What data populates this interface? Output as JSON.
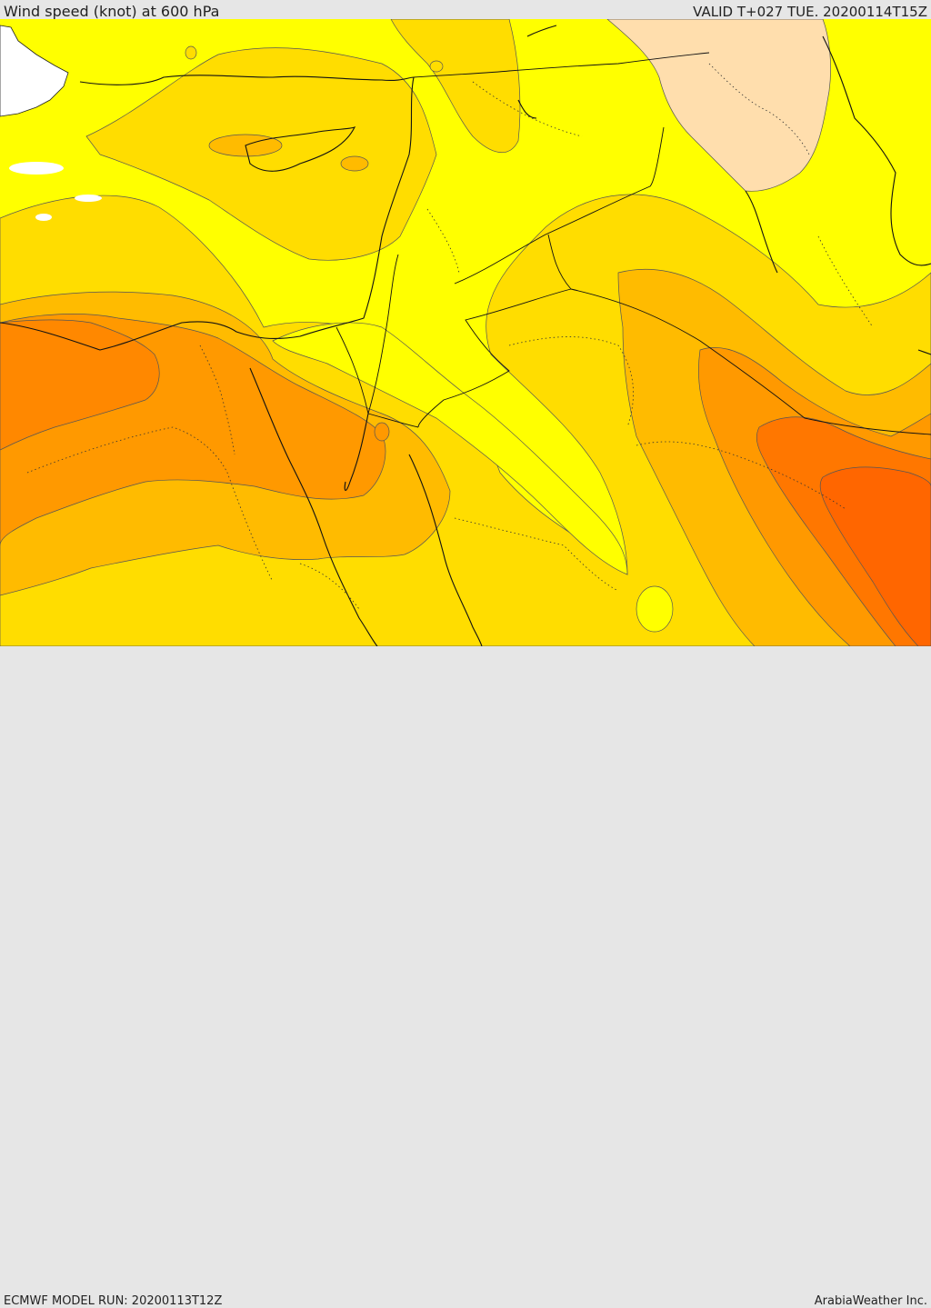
{
  "header": {
    "title": "Wind speed (knot) at 600 hPa",
    "valid": "VALID T+027 TUE. 20200114T15Z"
  },
  "footer": {
    "model_run": "ECMWF MODEL RUN: 20200113T12Z",
    "credit": "ArabiaWeather Inc."
  },
  "colors": {
    "band_low": "#ffff00",
    "band_mid": "#ffdd00",
    "band_high": "#ffbb00",
    "band_higher": "#ff9900",
    "band_highest": "#ff6600",
    "calm_region": "#ffdead",
    "land_gap": "#ffffff"
  }
}
